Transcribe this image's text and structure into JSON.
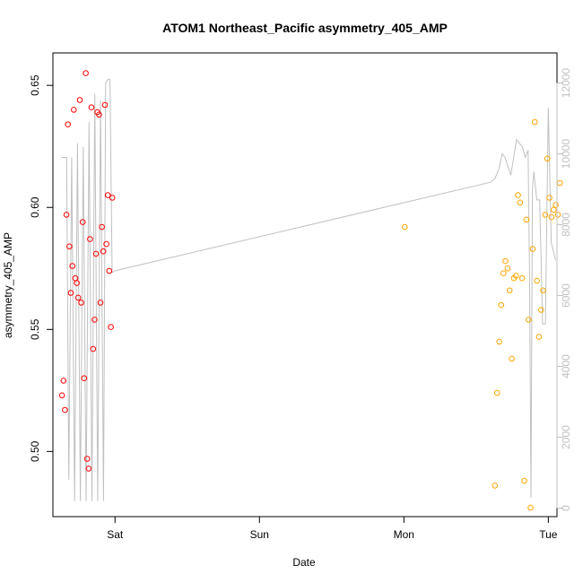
{
  "chart_data": {
    "type": "scatter",
    "title": "ATOM1 Northeast_Pacific asymmetry_405_AMP",
    "xlabel": "Date",
    "ylabel": "asymmetry_405_AMP",
    "x_unit": "days",
    "x_ticks": [
      {
        "label": "Sat",
        "value": 1
      },
      {
        "label": "Sun",
        "value": 2
      },
      {
        "label": "Mon",
        "value": 3
      },
      {
        "label": "Tue",
        "value": 4
      }
    ],
    "xlim": [
      0.57,
      4.06
    ],
    "ylim": [
      0.4733,
      0.6633
    ],
    "y_ticks": [
      0.5,
      0.55,
      0.6,
      0.65
    ],
    "y2_ticks": [
      0,
      2000,
      4000,
      6000,
      8000,
      10000,
      12000
    ],
    "y2lim": [
      -240,
      12850
    ],
    "series": [
      {
        "color": "#ff0000",
        "points": [
          [
            0.633,
            0.523
          ],
          [
            0.643,
            0.529
          ],
          [
            0.653,
            0.517
          ],
          [
            0.664,
            0.597
          ],
          [
            0.674,
            0.634
          ],
          [
            0.684,
            0.584
          ],
          [
            0.694,
            0.565
          ],
          [
            0.705,
            0.576
          ],
          [
            0.715,
            0.64
          ],
          [
            0.725,
            0.571
          ],
          [
            0.735,
            0.569
          ],
          [
            0.745,
            0.563
          ],
          [
            0.756,
            0.644
          ],
          [
            0.766,
            0.561
          ],
          [
            0.776,
            0.594
          ],
          [
            0.786,
            0.53
          ],
          [
            0.797,
            0.655
          ],
          [
            0.807,
            0.497
          ],
          [
            0.817,
            0.493
          ],
          [
            0.827,
            0.587
          ],
          [
            0.837,
            0.641
          ],
          [
            0.848,
            0.542
          ],
          [
            0.858,
            0.554
          ],
          [
            0.868,
            0.581
          ],
          [
            0.878,
            0.639
          ],
          [
            0.889,
            0.638
          ],
          [
            0.899,
            0.561
          ],
          [
            0.909,
            0.592
          ],
          [
            0.919,
            0.582
          ],
          [
            0.93,
            0.642
          ],
          [
            0.94,
            0.585
          ],
          [
            0.95,
            0.605
          ],
          [
            0.96,
            0.574
          ],
          [
            0.971,
            0.551
          ],
          [
            0.981,
            0.604
          ]
        ]
      },
      {
        "color": "#ffa500",
        "points": [
          [
            3.006,
            0.592
          ],
          [
            3.63,
            0.486
          ],
          [
            3.645,
            0.524
          ],
          [
            3.66,
            0.545
          ],
          [
            3.674,
            0.56
          ],
          [
            3.689,
            0.573
          ],
          [
            3.703,
            0.578
          ],
          [
            3.718,
            0.575
          ],
          [
            3.732,
            0.566
          ],
          [
            3.747,
            0.538
          ],
          [
            3.761,
            0.571
          ],
          [
            3.776,
            0.572
          ],
          [
            3.79,
            0.605
          ],
          [
            3.805,
            0.602
          ],
          [
            3.819,
            0.571
          ],
          [
            3.834,
            0.488
          ],
          [
            3.848,
            0.595
          ],
          [
            3.863,
            0.554
          ],
          [
            3.877,
            0.477
          ],
          [
            3.892,
            0.583
          ],
          [
            3.906,
            0.635
          ],
          [
            3.921,
            0.57
          ],
          [
            3.935,
            0.547
          ],
          [
            3.95,
            0.558
          ],
          [
            3.964,
            0.566
          ],
          [
            3.979,
            0.597
          ],
          [
            3.993,
            0.62
          ],
          [
            4.008,
            0.604
          ],
          [
            4.022,
            0.596
          ],
          [
            4.037,
            0.599
          ],
          [
            4.051,
            0.601
          ],
          [
            4.066,
            0.597
          ],
          [
            4.08,
            0.61
          ]
        ]
      }
    ],
    "secondary_line": {
      "color": "#c0c0c0",
      "axis": "right",
      "points": [
        [
          0.63,
          9900
        ],
        [
          0.65,
          9900
        ],
        [
          0.665,
          9900
        ],
        [
          0.68,
          800
        ],
        [
          0.7,
          9900
        ],
        [
          0.72,
          200
        ],
        [
          0.74,
          10300
        ],
        [
          0.76,
          200
        ],
        [
          0.78,
          10200
        ],
        [
          0.8,
          200
        ],
        [
          0.82,
          10900
        ],
        [
          0.84,
          200
        ],
        [
          0.86,
          11700
        ],
        [
          0.88,
          200
        ],
        [
          0.9,
          11500
        ],
        [
          0.92,
          200
        ],
        [
          0.935,
          12000
        ],
        [
          0.95,
          12100
        ],
        [
          0.965,
          12100
        ],
        [
          0.98,
          6650
        ],
        [
          1.0,
          6700
        ],
        [
          3.6,
          9200
        ],
        [
          3.63,
          9300
        ],
        [
          3.66,
          9600
        ],
        [
          3.68,
          10000
        ],
        [
          3.7,
          9900
        ],
        [
          3.74,
          9400
        ],
        [
          3.78,
          10400
        ],
        [
          3.82,
          10200
        ],
        [
          3.84,
          9900
        ],
        [
          3.86,
          10100
        ],
        [
          3.87,
          6600
        ],
        [
          3.88,
          300
        ],
        [
          3.89,
          9000
        ],
        [
          3.9,
          9500
        ],
        [
          3.92,
          8700
        ],
        [
          3.94,
          8700
        ],
        [
          3.96,
          5200
        ],
        [
          3.98,
          5200
        ],
        [
          4.0,
          11300
        ],
        [
          4.02,
          7500
        ],
        [
          4.05,
          7000
        ]
      ]
    }
  }
}
